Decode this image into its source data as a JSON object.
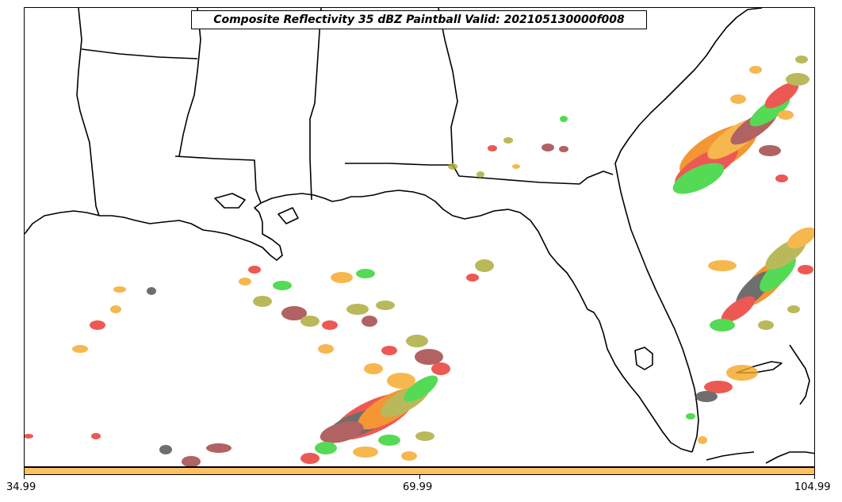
{
  "title": "Composite Reflectivity 35 dBZ Paintball Valid: 202105130000f008",
  "colors": {
    "red": "#e8302a",
    "green": "#2bd12b",
    "orange": "#f5a623",
    "darkorange": "#f07c00",
    "olive": "#a8a832",
    "brown": "#9e3b3b",
    "gray": "#4a4a4a",
    "colorbar_fill": "#fdc063"
  },
  "colorbar": {
    "ticks": [
      "34.99",
      "69.99",
      "104.99"
    ]
  }
}
